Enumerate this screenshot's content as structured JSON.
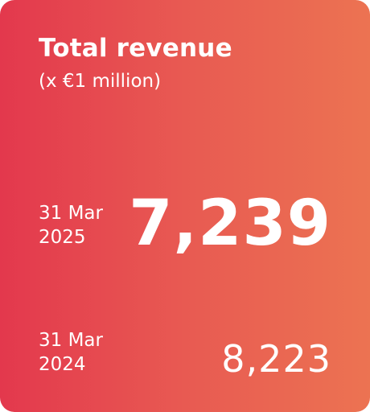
{
  "card": {
    "title": "Total revenue",
    "subtitle": "(x €1 million)",
    "current": {
      "label": "31 Mar 2025",
      "value": "7,239"
    },
    "previous": {
      "label": "31 Mar 2024",
      "value": "8,223"
    },
    "colors": {
      "gradient_start": "#e3384d",
      "gradient_end": "#ec7352",
      "text": "#ffffff"
    }
  }
}
